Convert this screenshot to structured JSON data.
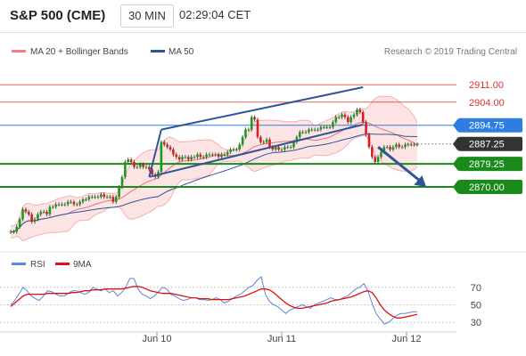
{
  "header": {
    "symbol": "S&P 500 (CME)",
    "interval": "30 MIN",
    "time": "02:29:04 CET"
  },
  "legend": {
    "bollinger": "MA 20 + Bollinger Bands",
    "ma50": "MA 50",
    "copyright": "Research © 2019 Trading Central",
    "colors": {
      "bollinger": "#f08080",
      "ma50": "#2f5597"
    }
  },
  "rsi_legend": {
    "rsi": "RSI",
    "ma": "9MA",
    "colors": {
      "rsi": "#5b87d6",
      "ma": "#e01010"
    }
  },
  "chart_data": [
    {
      "type": "line",
      "title": "",
      "description_note": "",
      "xlabel": "",
      "ylabel": "",
      "ylim": [
        2845,
        2920
      ],
      "x_ticks": [
        "Jun 10",
        "Jun 11",
        "Jun 12"
      ],
      "levels": [
        {
          "value": 2911.0,
          "label": "2911.00",
          "kind": "resistance",
          "color": "#e03030"
        },
        {
          "value": 2904.0,
          "label": "2904.00",
          "kind": "resistance",
          "color": "#e03030"
        },
        {
          "value": 2894.75,
          "label": "2894.75",
          "kind": "pivot",
          "color": "#2f7de1"
        },
        {
          "value": 2887.25,
          "label": "2887.25",
          "kind": "last-price",
          "color": "#333333"
        },
        {
          "value": 2879.25,
          "label": "2879.25",
          "kind": "support",
          "color": "#1a8a1a"
        },
        {
          "value": 2870.0,
          "label": "2870.00",
          "kind": "support",
          "color": "#1a8a1a"
        }
      ],
      "closes": [
        2852,
        2852,
        2854,
        2857,
        2861,
        2860,
        2859,
        2856,
        2857,
        2859,
        2860,
        2860,
        2859,
        2862,
        2862,
        2863,
        2863,
        2863,
        2863,
        2864,
        2864,
        2863,
        2863,
        2864,
        2865,
        2865,
        2866,
        2866,
        2866,
        2866,
        2867,
        2866,
        2866,
        2866,
        2864,
        2866,
        2870,
        2874,
        2880,
        2881,
        2880,
        2878,
        2878,
        2879,
        2878,
        2878,
        2877,
        2875,
        2874,
        2876,
        2888,
        2887,
        2886,
        2885,
        2883,
        2882,
        2881,
        2882,
        2882,
        2881,
        2882,
        2882,
        2883,
        2882,
        2882,
        2883,
        2883,
        2883,
        2883,
        2882,
        2883,
        2883,
        2884,
        2885,
        2885,
        2885,
        2887,
        2890,
        2893,
        2893,
        2898,
        2897,
        2890,
        2888,
        2888,
        2889,
        2886,
        2885,
        2886,
        2885,
        2885,
        2886,
        2886,
        2886,
        2888,
        2890,
        2892,
        2892,
        2892,
        2893,
        2893,
        2893,
        2893,
        2894,
        2894,
        2894,
        2894,
        2896,
        2898,
        2898,
        2899,
        2898,
        2896,
        2898,
        2899,
        2901,
        2900,
        2896,
        2891,
        2886,
        2882,
        2880,
        2882,
        2884,
        2886,
        2886,
        2885,
        2886,
        2887,
        2886,
        2886,
        2887,
        2887,
        2887,
        2887,
        2887
      ],
      "series": [
        {
          "name": "MA 20 + Bollinger Bands",
          "kind": "band"
        },
        {
          "name": "MA 50",
          "kind": "line"
        }
      ],
      "channel": {
        "upper": {
          "from": [
            50,
            2893
          ],
          "to": [
            117,
            2910
          ]
        },
        "lower": {
          "from": [
            46,
            2874
          ],
          "to": [
            117,
            2895
          ]
        }
      },
      "forecast_arrow": {
        "from": [
          122,
          2886
        ],
        "to": [
          138,
          2870
        ]
      }
    },
    {
      "type": "line",
      "title": "",
      "description_note": "",
      "ylim": [
        20,
        85
      ],
      "y_ticks": [
        30,
        50,
        70
      ],
      "series": [
        {
          "name": "RSI",
          "values": [
            50,
            55,
            62,
            70,
            66,
            60,
            57,
            55,
            60,
            66,
            65,
            62,
            60,
            60,
            63,
            66,
            66,
            64,
            62,
            64,
            70,
            68,
            66,
            68,
            64,
            66,
            60,
            64,
            70,
            80,
            80,
            68,
            62,
            60,
            57,
            60,
            65,
            70,
            68,
            62,
            60,
            57,
            55,
            56,
            58,
            58,
            56,
            56,
            55,
            56,
            58,
            56,
            52,
            54,
            57,
            60,
            62,
            66,
            70,
            72,
            78,
            82,
            62,
            54,
            50,
            48,
            44,
            40,
            44,
            46,
            48,
            50,
            48,
            46,
            50,
            52,
            54,
            56,
            58,
            56,
            56,
            58,
            60,
            64,
            68,
            70,
            74,
            66,
            52,
            40,
            34,
            28,
            30,
            34,
            38,
            40,
            40,
            41,
            42,
            42
          ]
        },
        {
          "name": "9MA",
          "values": [
            48,
            52,
            56,
            60,
            62,
            62,
            62,
            62,
            62,
            63,
            63,
            63,
            63,
            63,
            63,
            64,
            64,
            65,
            66,
            66,
            67,
            67,
            67,
            68,
            68,
            68,
            68,
            68,
            69,
            70,
            71,
            71,
            70,
            68,
            66,
            65,
            64,
            63,
            63,
            63,
            62,
            61,
            60,
            59,
            58,
            58,
            57,
            57,
            57,
            56,
            56,
            56,
            56,
            56,
            57,
            58,
            59,
            60,
            62,
            64,
            66,
            68,
            68,
            67,
            64,
            60,
            56,
            52,
            49,
            47,
            46,
            46,
            47,
            48,
            49,
            50,
            51,
            52,
            54,
            55,
            56,
            57,
            58,
            59,
            61,
            63,
            65,
            66,
            64,
            58,
            50,
            44,
            40,
            37,
            35,
            35,
            36,
            37,
            38,
            39
          ]
        }
      ]
    }
  ]
}
